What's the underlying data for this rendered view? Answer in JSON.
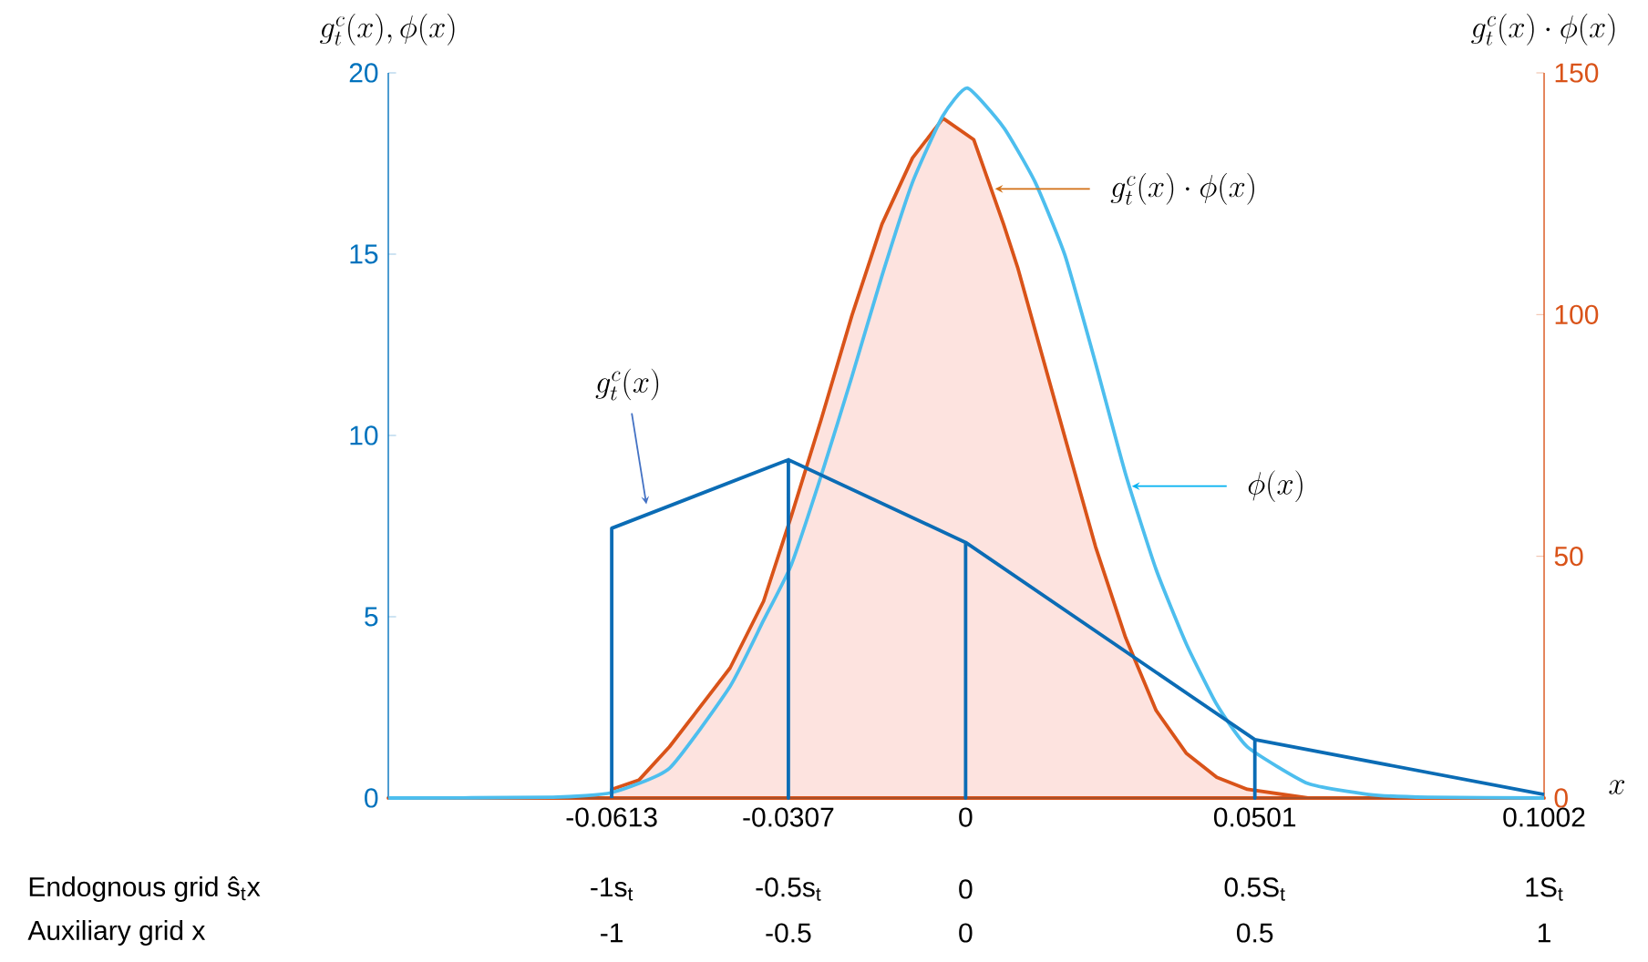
{
  "chart_data": {
    "type": "line",
    "xlabel": "x",
    "ylabel": "g_t^c(x), \\phi(x)",
    "y2label": "g_t^c(x)\\cdot\\phi(x)",
    "xlim": [
      -0.1,
      0.1002
    ],
    "xticks": [
      -0.0613,
      -0.0307,
      0,
      0.0501,
      0.1002
    ],
    "ylim": [
      0,
      20
    ],
    "yticks": [
      0,
      5,
      10,
      15,
      20
    ],
    "y2lim": [
      0,
      150
    ],
    "y2ticks": [
      0,
      50,
      100,
      150
    ],
    "series": [
      {
        "type": "area",
        "axis": "y2",
        "color": "#d95319",
        "x": [
          -0.1,
          -0.0613,
          -0.0613,
          -0.0566,
          -0.0513,
          -0.0408,
          -0.035,
          -0.0302,
          -0.025,
          -0.0197,
          -0.0145,
          -0.0092,
          -0.0039,
          0.0014,
          0.0066,
          0.009,
          0.0172,
          0.0225,
          0.0277,
          0.033,
          0.0382,
          0.0435,
          0.0488,
          0.0593,
          0.1002
        ],
        "values": [
          0,
          0,
          1.8,
          3.7,
          10.6,
          26.9,
          40.7,
          58.3,
          78.4,
          99.8,
          118.7,
          132.4,
          140.6,
          136.2,
          118.6,
          109.8,
          74.6,
          52,
          33.2,
          18.1,
          9.3,
          4.3,
          1.8,
          0,
          0
        ]
      },
      {
        "color": "#4dbeee",
        "x": [
          -0.1,
          -0.0715,
          -0.0613,
          -0.0513,
          -0.0408,
          -0.035,
          -0.0302,
          -0.025,
          -0.0197,
          -0.0145,
          -0.0092,
          -0.004,
          0.0003,
          0.0066,
          0.012,
          0.0172,
          0.0225,
          0.0277,
          0.033,
          0.0382,
          0.0435,
          0.0488,
          0.0593,
          0.0698,
          0.08,
          0.1002
        ],
        "values": [
          0,
          0.02,
          0.15,
          0.82,
          3.08,
          4.9,
          6.43,
          8.9,
          11.62,
          14.4,
          16.98,
          18.8,
          19.58,
          18.49,
          17.0,
          14.97,
          12.0,
          8.94,
          6.3,
          4.26,
          2.58,
          1.41,
          0.4,
          0.1,
          0.02,
          0
        ]
      },
      {
        "color": "#0b6cb5",
        "x": [
          -0.0613,
          -0.0613,
          -0.0307,
          -0.0307,
          -0.0307,
          0,
          0,
          0,
          0.0501,
          0.0501,
          0.0501,
          0.1002
        ],
        "values": [
          0,
          7.44,
          9.33,
          0,
          9.33,
          7.05,
          0,
          7.05,
          1.61,
          0,
          1.61,
          0.1
        ]
      }
    ],
    "annotations": [
      {
        "text": "g_t^c(x)",
        "x": -0.0553,
        "y": 8.1
      },
      {
        "text": "g_t^c(x)\\cdot\\phi(x)",
        "x": 0.0051,
        "y": 16.8
      },
      {
        "text": "\\phi(x)",
        "x": 0.0288,
        "y": 8.6
      },
      "Endognous grid ŝ$_{t}$x",
      "-1s$_{t}$",
      "-0.5s$_{t}$",
      "0",
      "0.5S$_{t}$",
      "1S$_{t}$",
      "Auxiliary grid x",
      "-1",
      "-0.5",
      "0",
      "0.5",
      "1"
    ]
  }
}
